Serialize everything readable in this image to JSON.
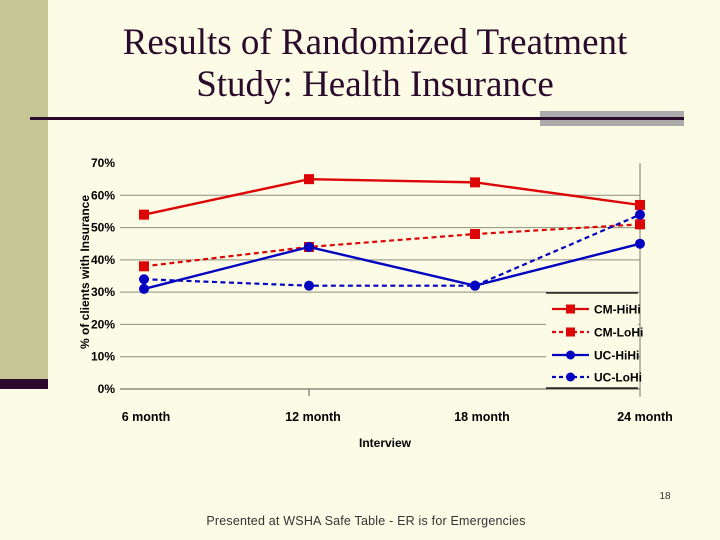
{
  "slide": {
    "title_line1": "Results of Randomized Treatment",
    "title_line2": "Study: Health Insurance",
    "footer": "Presented at WSHA Safe Table - ER is for Emergencies",
    "page_number": "18"
  },
  "colors": {
    "background": "#fbfbe6",
    "side_bar": "#c6c696",
    "accent_dark": "#2b0a2b",
    "accent_gray": "#ababab",
    "gridline": "#8e8e7e",
    "axis_line": "#77776a",
    "text": "#000000",
    "series_red": "#dd0606",
    "series_blue": "#0202c0"
  },
  "chart_data": {
    "type": "line",
    "title": "",
    "xlabel": "Interview",
    "ylabel": "% of clients with Insurance",
    "categories": [
      "6 month",
      "12 month",
      "18 month",
      "24 month"
    ],
    "series": [
      {
        "name": "CM-HiHi",
        "values": [
          54,
          65,
          64,
          57
        ],
        "color": "#dd0606",
        "line": "solid",
        "marker": "square"
      },
      {
        "name": "CM-LoHi",
        "values": [
          38,
          44,
          48,
          51
        ],
        "color": "#dd0606",
        "line": "dashed",
        "marker": "square"
      },
      {
        "name": "UC-HiHi",
        "values": [
          31,
          44,
          32,
          45
        ],
        "color": "#0202c0",
        "line": "solid",
        "marker": "circle"
      },
      {
        "name": "UC-LoHi",
        "values": [
          34,
          32,
          32,
          54
        ],
        "color": "#0202c0",
        "line": "dashed",
        "marker": "circle"
      }
    ],
    "ylim": [
      0,
      70
    ],
    "ytick_labels": [
      "0%",
      "10%",
      "20%",
      "30%",
      "40%",
      "50%",
      "60%",
      "70%"
    ],
    "grid": "horizontal",
    "legend_position": "inside-right-bottom"
  }
}
